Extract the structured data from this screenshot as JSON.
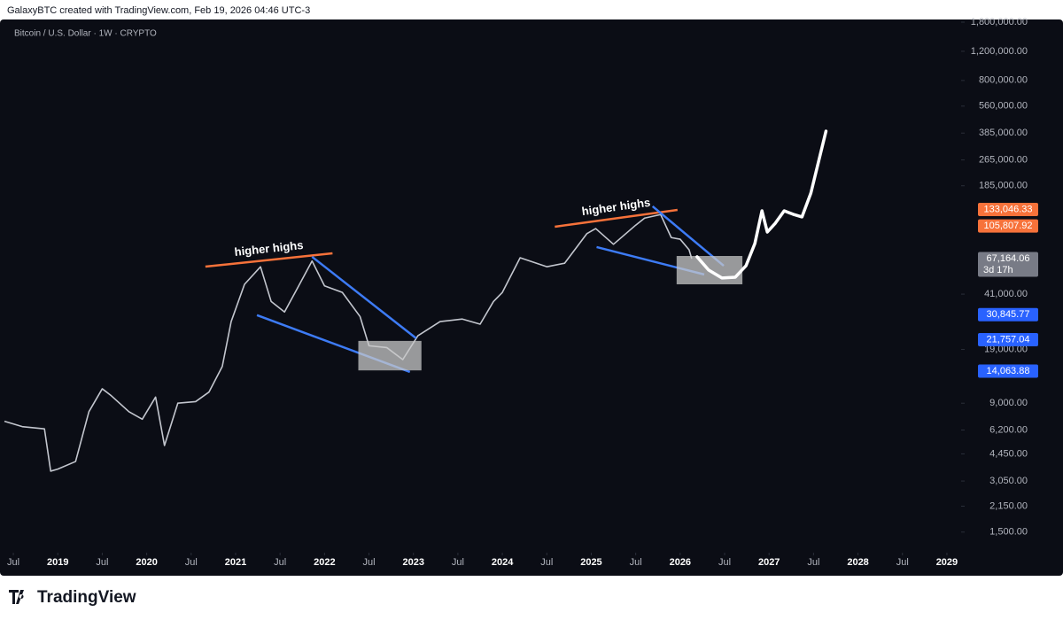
{
  "header": {
    "attribution": "GalaxyBTC created with TradingView.com, Feb 19, 2026 04:46 UTC-3"
  },
  "footer": {
    "brand": "TradingView"
  },
  "chart_data": {
    "type": "line",
    "title": "Bitcoin / U.S. Dollar · 1W · CRYPTO",
    "log_scale": true,
    "x": [
      2018.4,
      2018.6,
      2018.85,
      2018.92,
      2019.0,
      2019.2,
      2019.35,
      2019.5,
      2019.6,
      2019.8,
      2019.95,
      2020.1,
      2020.2,
      2020.35,
      2020.55,
      2020.7,
      2020.85,
      2020.95,
      2021.1,
      2021.28,
      2021.4,
      2021.55,
      2021.7,
      2021.86,
      2022.0,
      2022.2,
      2022.4,
      2022.5,
      2022.7,
      2022.88,
      2023.05,
      2023.3,
      2023.55,
      2023.75,
      2023.9,
      2024.0,
      2024.2,
      2024.5,
      2024.7,
      2024.95,
      2025.05,
      2025.25,
      2025.5,
      2025.6,
      2025.78,
      2025.9,
      2026.0,
      2026.1,
      2026.13
    ],
    "series": [
      {
        "color": "#c3c6ce",
        "values": [
          7000,
          6500,
          6300,
          3500,
          3600,
          4000,
          8000,
          11000,
          10000,
          8000,
          7200,
          9800,
          5000,
          9000,
          9200,
          10500,
          15000,
          28000,
          47000,
          60000,
          37000,
          32000,
          45000,
          65000,
          46000,
          42000,
          30000,
          20000,
          19500,
          16500,
          23000,
          28000,
          29000,
          27000,
          37000,
          42000,
          68000,
          60000,
          63000,
          95000,
          102000,
          82000,
          107000,
          118000,
          124000,
          90000,
          88000,
          76000,
          67164.06
        ]
      }
    ],
    "xlim": [
      2018.35,
      2029.16
    ],
    "ylim": [
      1183,
      1914000
    ],
    "xticks": [
      {
        "value": 2018.5,
        "label": "Jul"
      },
      2019,
      {
        "value": 2019.5,
        "label": "Jul"
      },
      2020,
      {
        "value": 2020.5,
        "label": "Jul"
      },
      2021,
      {
        "value": 2021.5,
        "label": "Jul"
      },
      2022,
      {
        "value": 2022.5,
        "label": "Jul"
      },
      2023,
      {
        "value": 2023.5,
        "label": "Jul"
      },
      2024,
      {
        "value": 2024.5,
        "label": "Jul"
      },
      2025,
      {
        "value": 2025.5,
        "label": "Jul"
      },
      2026,
      {
        "value": 2026.5,
        "label": "Jul"
      },
      2027,
      {
        "value": 2027.5,
        "label": "Jul"
      },
      2028,
      {
        "value": 2028.5,
        "label": "Jul"
      },
      2029
    ],
    "yticks": [
      {
        "value": 1800000,
        "label": "1,800,000.00"
      },
      {
        "value": 1200000,
        "label": "1,200,000.00"
      },
      {
        "value": 800000,
        "label": "800,000.00"
      },
      {
        "value": 560000,
        "label": "560,000.00"
      },
      {
        "value": 385000,
        "label": "385,000.00"
      },
      {
        "value": 265000,
        "label": "265,000.00"
      },
      {
        "value": 185000,
        "label": "185,000.00"
      },
      {
        "value": 41000,
        "label": "41,000.00"
      },
      {
        "value": 19000,
        "label": "19,000.00"
      },
      {
        "value": 9000,
        "label": "9,000.00"
      },
      {
        "value": 6200,
        "label": "6,200.00"
      },
      {
        "value": 4450,
        "label": "4,450.00"
      },
      {
        "value": 3050,
        "label": "3,050.00"
      },
      {
        "value": 2150,
        "label": "2,150.00"
      },
      {
        "value": 1500,
        "label": "1,500.00"
      }
    ],
    "price_labels": [
      {
        "value": 133046.33,
        "label": "133,046.33",
        "color": "#f7723a"
      },
      {
        "value": 105807.92,
        "label": "105,807.92",
        "color": "#f7723a"
      },
      {
        "value": 67164.06,
        "label": "67,164.06",
        "color": "#787b86",
        "countdown": "3d 17h"
      },
      {
        "value": 30845.77,
        "label": "30,845.77",
        "color": "#2962ff"
      },
      {
        "value": 21757.04,
        "label": "21,757.04",
        "color": "#2962ff"
      },
      {
        "value": 14063.88,
        "label": "14,063.88",
        "color": "#2962ff"
      }
    ],
    "drawings": [
      {
        "kind": "line",
        "color": "#f7723a",
        "label": "higher highs",
        "points": [
          {
            "x": 2020.66,
            "y": 60100
          },
          {
            "x": 2022.09,
            "y": 72300
          }
        ]
      },
      {
        "kind": "line",
        "color": "#3d7bf5",
        "points": [
          {
            "x": 2021.24,
            "y": 30600
          },
          {
            "x": 2022.96,
            "y": 13900
          }
        ]
      },
      {
        "kind": "line",
        "color": "#3d7bf5",
        "points": [
          {
            "x": 2021.86,
            "y": 68900
          },
          {
            "x": 2023.03,
            "y": 22200
          }
        ]
      },
      {
        "kind": "box",
        "color": "#c8c8c8",
        "points": [
          {
            "x": 2022.38,
            "y": 21400
          },
          {
            "x": 2023.09,
            "y": 14200
          }
        ]
      },
      {
        "kind": "line",
        "color": "#f7723a",
        "label": "higher highs",
        "points": [
          {
            "x": 2024.59,
            "y": 104700
          },
          {
            "x": 2025.97,
            "y": 132200
          }
        ]
      },
      {
        "kind": "line",
        "color": "#3d7bf5",
        "points": [
          {
            "x": 2025.06,
            "y": 78900
          },
          {
            "x": 2026.27,
            "y": 53900
          }
        ]
      },
      {
        "kind": "line",
        "color": "#3d7bf5",
        "points": [
          {
            "x": 2025.69,
            "y": 139000
          },
          {
            "x": 2026.49,
            "y": 60800
          }
        ]
      },
      {
        "kind": "box",
        "color": "#c8c8c8",
        "points": [
          {
            "x": 2025.96,
            "y": 69700
          },
          {
            "x": 2026.7,
            "y": 47000
          }
        ]
      },
      {
        "kind": "brush",
        "color": "#ffffff",
        "points": [
          {
            "x": 2026.19,
            "y": 68900
          },
          {
            "x": 2026.32,
            "y": 57300
          },
          {
            "x": 2026.47,
            "y": 51300
          },
          {
            "x": 2026.62,
            "y": 51900
          },
          {
            "x": 2026.74,
            "y": 60800
          },
          {
            "x": 2026.84,
            "y": 82800
          },
          {
            "x": 2026.92,
            "y": 130600
          },
          {
            "x": 2026.98,
            "y": 97200
          },
          {
            "x": 2027.07,
            "y": 109900
          },
          {
            "x": 2027.17,
            "y": 130600
          },
          {
            "x": 2027.27,
            "y": 124500
          },
          {
            "x": 2027.37,
            "y": 120000
          },
          {
            "x": 2027.47,
            "y": 167100
          },
          {
            "x": 2027.64,
            "y": 395500
          }
        ]
      }
    ]
  }
}
